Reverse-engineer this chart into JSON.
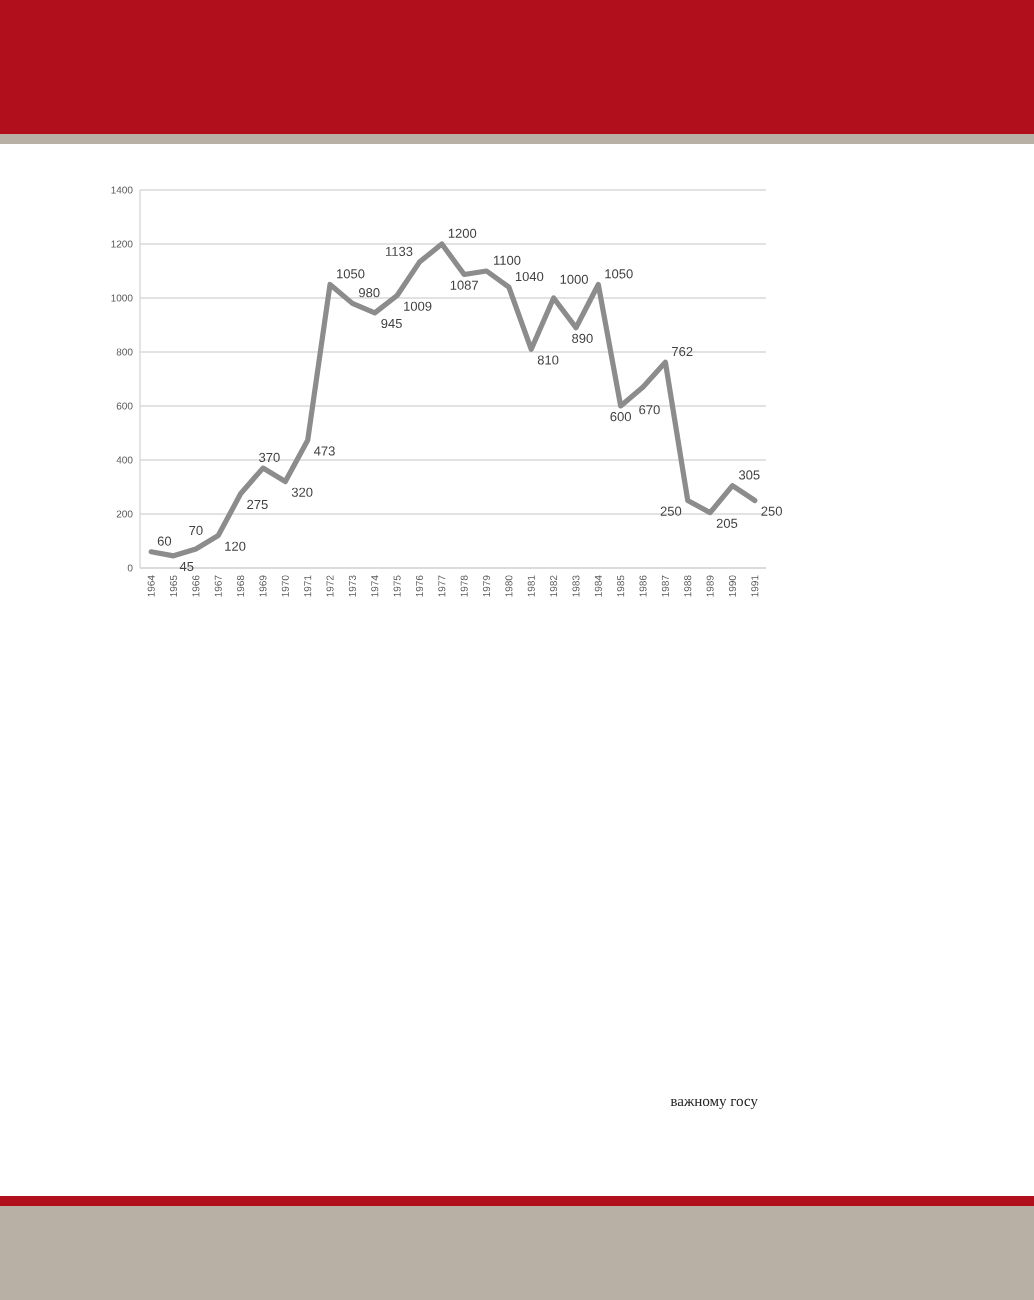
{
  "chart_data": {
    "type": "line",
    "categories": [
      "1964",
      "1965",
      "1966",
      "1967",
      "1968",
      "1969",
      "1970",
      "1971",
      "1972",
      "1973",
      "1974",
      "1975",
      "1976",
      "1977",
      "1978",
      "1979",
      "1980",
      "1981",
      "1982",
      "1983",
      "1984",
      "1985",
      "1986",
      "1987",
      "1988",
      "1989",
      "1990",
      "1991"
    ],
    "values": [
      60,
      45,
      70,
      120,
      275,
      370,
      320,
      473,
      1050,
      980,
      945,
      1009,
      1133,
      1200,
      1087,
      1100,
      1040,
      810,
      1000,
      890,
      1050,
      600,
      670,
      762,
      250,
      205,
      305,
      250
    ],
    "color": "#8c8c8c",
    "marker": "none",
    "line_style": "solid",
    "ylim": [
      0,
      1400
    ],
    "yticks": [
      0,
      200,
      400,
      600,
      800,
      1000,
      1200,
      1400
    ],
    "grid": "y",
    "data_labels": true,
    "annotations": [
      "важному госу"
    ]
  }
}
